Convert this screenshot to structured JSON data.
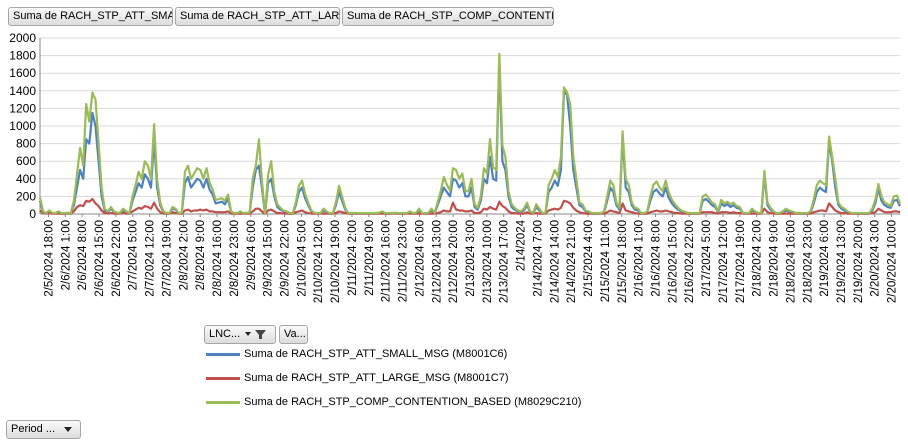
{
  "value_fields": [
    "Suma de RACH_STP_ATT_SMA...",
    "Suma de RACH_STP_ATT_LAR...",
    "Suma de RACH_STP_COMP_CONTENTIO..."
  ],
  "axis_fields": {
    "lnc_label": "LNC...",
    "va_label": "Va..."
  },
  "filter_field": {
    "label": "Period ..."
  },
  "colors": {
    "small": "#4f81bd",
    "large": "#c0504d",
    "contention": "#9bbb59",
    "grid": "#d9d9d9",
    "axis": "#888888"
  },
  "chart_data": {
    "type": "line",
    "ylim": [
      0,
      2000
    ],
    "yticks": [
      0,
      200,
      400,
      600,
      800,
      1000,
      1200,
      1400,
      1600,
      1800,
      2000
    ],
    "x_tick_labels": [
      "2/5/2024 18:00",
      "2/6/2024 1:00",
      "2/6/2024 8:00",
      "2/6/2024 15:00",
      "2/6/2024 22:00",
      "2/7/2024 5:00",
      "2/7/2024 12:00",
      "2/7/2024 19:00",
      "2/8/2024 2:00",
      "2/8/2024 9:00",
      "2/8/2024 16:00",
      "2/8/2024 23:00",
      "2/9/2024 6:00",
      "2/9/2024 15:00",
      "2/9/2024 22:00",
      "2/10/2024 5:00",
      "2/10/2024 12:00",
      "2/10/2024 19:00",
      "2/11/2024 2:00",
      "2/11/2024 9:00",
      "2/11/2024 16:00",
      "2/11/2024 23:00",
      "2/12/2024 6:00",
      "2/12/2024 13:00",
      "2/12/2024 20:00",
      "2/13/2024 3:00",
      "2/13/2024 10:00",
      "2/13/2024 17:00",
      "2/14/2024",
      "2/14/2024 7:00",
      "2/14/2024 14:00",
      "2/14/2024 21:00",
      "2/15/2024 4:00",
      "2/15/2024 11:00",
      "2/15/2024 18:00",
      "2/16/2024 1:00",
      "2/16/2024 8:00",
      "2/16/2024 15:00",
      "2/16/2024 22:00",
      "2/17/2024 5:00",
      "2/17/2024 12:00",
      "2/17/2024 19:00",
      "2/18/2024 2:00",
      "2/18/2024 9:00",
      "2/18/2024 16:00",
      "2/18/2024 23:00",
      "2/19/2024 6:00",
      "2/19/2024 13:00",
      "2/19/2024 20:00",
      "2/20/2024 3:00",
      "2/20/2024 10:00"
    ],
    "series": [
      {
        "name": "Suma de RACH_STP_ATT_SMALL_MSG (M8001C6)",
        "key": "small",
        "values": [
          150,
          20,
          5,
          30,
          10,
          5,
          20,
          5,
          5,
          10,
          5,
          100,
          300,
          500,
          400,
          850,
          800,
          1150,
          1000,
          600,
          200,
          40,
          20,
          60,
          20,
          10,
          10,
          40,
          20,
          5,
          150,
          250,
          350,
          300,
          450,
          400,
          300,
          850,
          300,
          100,
          20,
          5,
          5,
          60,
          50,
          5,
          10,
          350,
          420,
          300,
          350,
          400,
          380,
          300,
          400,
          280,
          220,
          120,
          130,
          140,
          110,
          180,
          20,
          5,
          5,
          20,
          5,
          10,
          10,
          300,
          500,
          550,
          300,
          0,
          350,
          400,
          200,
          80,
          50,
          30,
          20,
          5,
          5,
          100,
          250,
          300,
          180,
          100,
          30,
          10,
          5,
          5,
          40,
          20,
          5,
          5,
          100,
          250,
          150,
          50,
          5,
          5,
          5,
          5,
          5,
          5,
          5,
          5,
          5,
          5,
          10,
          20,
          5,
          5,
          5,
          10,
          5,
          5,
          5,
          5,
          20,
          5,
          10,
          40,
          5,
          5,
          10,
          40,
          10,
          100,
          200,
          300,
          250,
          200,
          400,
          380,
          300,
          350,
          200,
          200,
          300,
          80,
          50,
          150,
          400,
          350,
          650,
          400,
          380,
          1750,
          600,
          500,
          200,
          80,
          50,
          30,
          20,
          40,
          100,
          20,
          10,
          80,
          40,
          5,
          10,
          250,
          300,
          380,
          320,
          500,
          1400,
          1350,
          1000,
          500,
          300,
          100,
          80,
          30,
          20,
          5,
          5,
          5,
          5,
          20,
          150,
          300,
          250,
          100,
          50,
          880,
          300,
          250,
          100,
          50,
          40,
          5,
          5,
          20,
          150,
          250,
          280,
          230,
          200,
          300,
          180,
          120,
          80,
          50,
          30,
          20,
          10,
          5,
          5,
          5,
          5,
          150,
          170,
          140,
          100,
          80,
          20,
          120,
          90,
          110,
          80,
          100,
          70,
          60,
          10,
          5,
          5,
          40,
          20,
          5,
          5,
          440,
          100,
          50,
          20,
          5,
          5,
          20,
          40,
          30,
          20,
          10,
          5,
          5,
          5,
          5,
          20,
          120,
          250,
          300,
          270,
          250,
          820,
          600,
          300,
          100,
          60,
          40,
          20,
          10,
          5,
          5,
          5,
          5,
          5,
          5,
          40,
          120,
          290,
          150,
          100,
          80,
          70,
          150,
          160,
          90
        ]
      },
      {
        "name": "Suma de RACH_STP_ATT_LARGE_MSG (M8001C7)",
        "key": "large",
        "values": [
          40,
          10,
          5,
          10,
          5,
          5,
          5,
          5,
          5,
          5,
          5,
          30,
          80,
          100,
          90,
          150,
          140,
          170,
          120,
          90,
          40,
          10,
          5,
          10,
          5,
          5,
          5,
          10,
          5,
          5,
          30,
          50,
          70,
          60,
          90,
          80,
          60,
          130,
          60,
          20,
          5,
          5,
          5,
          20,
          10,
          5,
          5,
          40,
          50,
          30,
          40,
          40,
          50,
          40,
          50,
          30,
          30,
          20,
          20,
          20,
          20,
          30,
          5,
          5,
          5,
          5,
          5,
          5,
          5,
          30,
          60,
          60,
          30,
          0,
          40,
          50,
          30,
          10,
          10,
          5,
          5,
          5,
          5,
          20,
          30,
          40,
          20,
          10,
          5,
          5,
          5,
          5,
          5,
          5,
          5,
          5,
          10,
          30,
          20,
          10,
          5,
          5,
          5,
          5,
          5,
          5,
          5,
          5,
          5,
          5,
          5,
          5,
          5,
          5,
          5,
          5,
          5,
          5,
          5,
          5,
          5,
          5,
          5,
          5,
          5,
          5,
          5,
          5,
          5,
          10,
          20,
          40,
          30,
          30,
          130,
          50,
          40,
          40,
          30,
          30,
          40,
          10,
          10,
          20,
          60,
          50,
          80,
          60,
          50,
          140,
          90,
          70,
          30,
          10,
          10,
          5,
          5,
          5,
          20,
          5,
          5,
          10,
          5,
          5,
          5,
          40,
          50,
          60,
          50,
          70,
          150,
          140,
          120,
          70,
          40,
          20,
          10,
          5,
          5,
          5,
          5,
          5,
          5,
          5,
          20,
          40,
          30,
          20,
          10,
          120,
          40,
          30,
          20,
          10,
          5,
          5,
          5,
          5,
          20,
          30,
          40,
          30,
          30,
          40,
          30,
          20,
          10,
          10,
          5,
          5,
          5,
          5,
          5,
          5,
          5,
          20,
          20,
          20,
          20,
          10,
          5,
          20,
          20,
          20,
          10,
          20,
          10,
          10,
          5,
          5,
          5,
          5,
          5,
          5,
          5,
          60,
          20,
          10,
          5,
          5,
          5,
          5,
          5,
          5,
          5,
          5,
          5,
          5,
          5,
          5,
          5,
          20,
          30,
          40,
          40,
          30,
          120,
          80,
          40,
          20,
          10,
          10,
          5,
          5,
          5,
          5,
          5,
          5,
          5,
          5,
          10,
          20,
          60,
          40,
          20,
          20,
          20,
          30,
          30,
          20
        ]
      },
      {
        "name": "Suma de RACH_STP_COMP_CONTENTION_BASED (M8029C210)",
        "key": "contention",
        "values": [
          190,
          30,
          10,
          40,
          15,
          10,
          30,
          10,
          10,
          15,
          10,
          150,
          450,
          750,
          550,
          1250,
          1050,
          1380,
          1300,
          800,
          300,
          60,
          30,
          80,
          30,
          15,
          15,
          60,
          30,
          10,
          200,
          330,
          480,
          400,
          600,
          550,
          400,
          1020,
          400,
          130,
          30,
          10,
          10,
          80,
          60,
          10,
          15,
          480,
          550,
          400,
          460,
          520,
          500,
          400,
          520,
          360,
          280,
          160,
          170,
          180,
          150,
          220,
          30,
          10,
          10,
          30,
          10,
          15,
          15,
          400,
          550,
          850,
          380,
          0,
          450,
          600,
          250,
          110,
          70,
          40,
          30,
          10,
          10,
          130,
          320,
          380,
          230,
          130,
          40,
          15,
          10,
          10,
          60,
          30,
          10,
          10,
          130,
          320,
          200,
          70,
          10,
          10,
          10,
          10,
          10,
          10,
          10,
          10,
          10,
          10,
          15,
          30,
          10,
          10,
          10,
          15,
          10,
          10,
          10,
          10,
          30,
          10,
          15,
          60,
          10,
          10,
          15,
          60,
          15,
          130,
          260,
          420,
          330,
          270,
          520,
          500,
          400,
          460,
          260,
          260,
          400,
          110,
          70,
          200,
          520,
          460,
          850,
          530,
          500,
          1820,
          780,
          650,
          260,
          110,
          70,
          40,
          30,
          60,
          130,
          30,
          15,
          110,
          60,
          10,
          15,
          330,
          400,
          500,
          420,
          650,
          1440,
          1380,
          1250,
          650,
          400,
          130,
          110,
          40,
          30,
          10,
          10,
          10,
          10,
          30,
          200,
          380,
          330,
          130,
          70,
          940,
          400,
          330,
          130,
          70,
          60,
          10,
          10,
          30,
          200,
          330,
          370,
          300,
          260,
          380,
          240,
          160,
          110,
          70,
          40,
          30,
          15,
          10,
          10,
          10,
          10,
          200,
          220,
          180,
          130,
          110,
          30,
          160,
          120,
          140,
          110,
          130,
          90,
          80,
          15,
          10,
          10,
          60,
          30,
          10,
          10,
          490,
          130,
          70,
          30,
          10,
          10,
          30,
          60,
          40,
          30,
          15,
          10,
          10,
          10,
          10,
          30,
          160,
          330,
          380,
          350,
          330,
          880,
          650,
          400,
          130,
          80,
          60,
          30,
          15,
          10,
          10,
          10,
          10,
          10,
          10,
          60,
          160,
          340,
          200,
          130,
          110,
          90,
          200,
          210,
          120
        ]
      }
    ]
  }
}
